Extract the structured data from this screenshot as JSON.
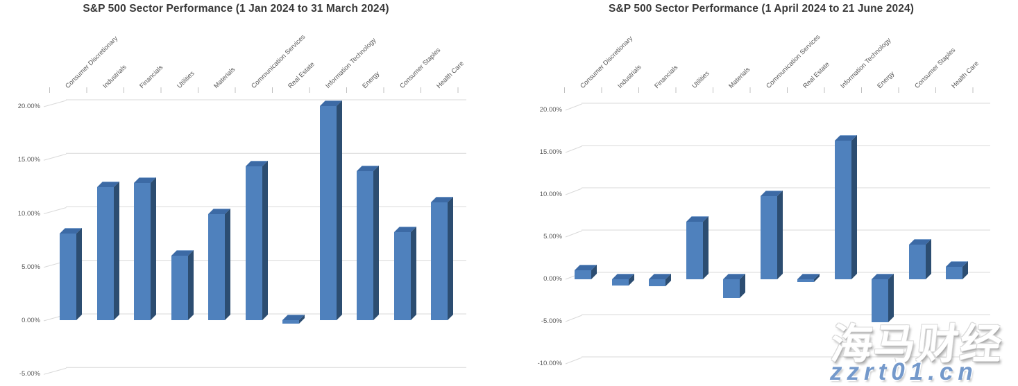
{
  "watermark": {
    "brand_text": "海马财经",
    "site_text": "zzrt01.cn",
    "brand_color": "#ffffff",
    "site_color": "#7499cb"
  },
  "chart_data": [
    {
      "type": "bar",
      "style": "3d-column",
      "title": "S&P 500 Sector Performance (1 Jan 2024 to 31 March 2024)",
      "categories": [
        "Consumer Discretionary",
        "Industrials",
        "Financials",
        "Utilities",
        "Materials",
        "Communication Services",
        "Real Estate",
        "Information Technology",
        "Energy",
        "Consumer Staples",
        "Health Care"
      ],
      "values": [
        8.1,
        12.4,
        12.8,
        6.0,
        9.9,
        14.4,
        -0.3,
        20.0,
        13.9,
        8.2,
        11.0
      ],
      "unit": "%",
      "ylim": [
        -5,
        20
      ],
      "ytick_step": 5,
      "ytick_labels": [
        "20.00%",
        "15.00%",
        "10.00%",
        "5.00%",
        "0.00%",
        "-5.00%"
      ],
      "grid": true,
      "legend": "none",
      "bar_color": "#4f81bd",
      "bar_side_color": "#2c4d71",
      "bar_top_color": "#3c6aa5",
      "gridline_color": "#d9d9d9",
      "category_axis_position": "top"
    },
    {
      "type": "bar",
      "style": "3d-column",
      "title": "S&P 500 Sector Performance (1 April 2024 to 21 June 2024)",
      "categories": [
        "Consumer Discretionary",
        "Industrials",
        "Financials",
        "Utilities",
        "Materials",
        "Communication Services",
        "Real Estate",
        "Information Technology",
        "Energy",
        "Consumer Staples",
        "Health Care"
      ],
      "values": [
        1.1,
        -0.7,
        -0.8,
        6.8,
        -2.2,
        9.8,
        -0.3,
        16.4,
        -5.1,
        4.1,
        1.5
      ],
      "unit": "%",
      "ylim": [
        -10,
        20
      ],
      "ytick_step": 5,
      "ytick_labels": [
        "20.00%",
        "15.00%",
        "10.00%",
        "5.00%",
        "0.00%",
        "-5.00%",
        "-10.00%"
      ],
      "grid": true,
      "legend": "none",
      "bar_color": "#4f81bd",
      "bar_side_color": "#2c4d71",
      "bar_top_color": "#3c6aa5",
      "gridline_color": "#d9d9d9",
      "category_axis_position": "top"
    }
  ]
}
